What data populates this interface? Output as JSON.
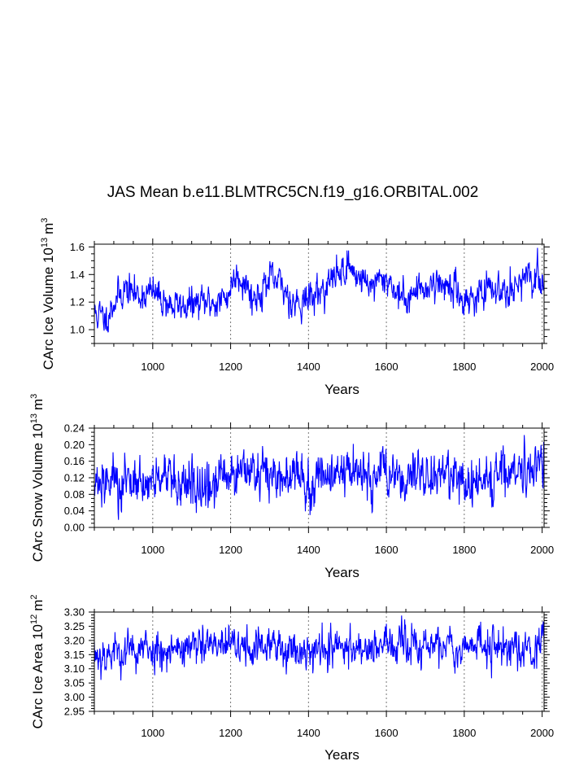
{
  "title": "JAS Mean b.e11.BLMTRC5CN.f19_g16.ORBITAL.002",
  "chart_data": [
    {
      "type": "line",
      "name": "ice-volume",
      "ylabel_main": "CArc Ice Volume 10",
      "ylabel_exp": "13",
      "ylabel_unit": "m",
      "ylabel_unit_exp": "3",
      "xlabel": "Years",
      "xlim": [
        850,
        2005
      ],
      "ylim": [
        0.9,
        1.62
      ],
      "xticks": [
        1000,
        1200,
        1400,
        1600,
        1800,
        2000
      ],
      "xtick_labels": [
        "1000",
        "1200",
        "1400",
        "1600",
        "1800",
        "2000"
      ],
      "yticks": [
        1.0,
        1.2,
        1.4,
        1.6
      ],
      "ytick_labels": [
        "1.0",
        "1.2",
        "1.4",
        "1.6"
      ],
      "minor_ystep": 0.05,
      "gridlines_x": [
        1000,
        1200,
        1400,
        1600,
        1800,
        2000
      ],
      "line_color": "#0000ff",
      "trend": {
        "years": [
          850,
          880,
          900,
          930,
          960,
          1000,
          1050,
          1100,
          1150,
          1170,
          1190,
          1200,
          1215,
          1240,
          1260,
          1300,
          1330,
          1360,
          1400,
          1440,
          1480,
          1500,
          1540,
          1570,
          1600,
          1640,
          1680,
          1720,
          1760,
          1800,
          1850,
          1900,
          1940,
          1980,
          2005
        ],
        "values": [
          1.12,
          1.08,
          1.2,
          1.3,
          1.25,
          1.27,
          1.17,
          1.18,
          1.2,
          1.2,
          1.24,
          1.3,
          1.42,
          1.33,
          1.22,
          1.36,
          1.32,
          1.2,
          1.22,
          1.3,
          1.42,
          1.46,
          1.36,
          1.32,
          1.38,
          1.22,
          1.28,
          1.34,
          1.32,
          1.22,
          1.26,
          1.3,
          1.34,
          1.36,
          1.38
        ]
      },
      "noise_std": 0.06,
      "seed": 11
    },
    {
      "type": "line",
      "name": "snow-volume",
      "ylabel_main": "CArc Snow Volume 10",
      "ylabel_exp": "13",
      "ylabel_unit": "m",
      "ylabel_unit_exp": "3",
      "xlabel": "Years",
      "xlim": [
        850,
        2005
      ],
      "ylim": [
        0.0,
        0.24
      ],
      "xticks": [
        1000,
        1200,
        1400,
        1600,
        1800,
        2000
      ],
      "xtick_labels": [
        "1000",
        "1200",
        "1400",
        "1600",
        "1800",
        "2000"
      ],
      "yticks": [
        0.0,
        0.04,
        0.08,
        0.12,
        0.16,
        0.2,
        0.24
      ],
      "ytick_labels": [
        "0.00",
        "0.04",
        "0.08",
        "0.12",
        "0.16",
        "0.20",
        "0.24"
      ],
      "minor_ystep": 0.01,
      "gridlines_x": [
        1000,
        1200,
        1400,
        1600,
        1800,
        2000
      ],
      "line_color": "#0000ff",
      "trend": {
        "years": [
          850,
          900,
          950,
          1000,
          1050,
          1100,
          1150,
          1200,
          1250,
          1300,
          1350,
          1400,
          1450,
          1500,
          1550,
          1600,
          1650,
          1700,
          1750,
          1800,
          1850,
          1900,
          1950,
          2005
        ],
        "values": [
          0.1,
          0.11,
          0.11,
          0.12,
          0.1,
          0.09,
          0.1,
          0.13,
          0.13,
          0.13,
          0.12,
          0.11,
          0.13,
          0.13,
          0.12,
          0.12,
          0.12,
          0.13,
          0.14,
          0.11,
          0.12,
          0.12,
          0.14,
          0.15
        ]
      },
      "noise_std": 0.03,
      "seed": 27
    },
    {
      "type": "line",
      "name": "ice-area",
      "ylabel_main": "CArc Ice Area 10",
      "ylabel_exp": "12",
      "ylabel_unit": "m",
      "ylabel_unit_exp": "2",
      "xlabel": "Years",
      "xlim": [
        850,
        2005
      ],
      "ylim": [
        2.95,
        3.3
      ],
      "xticks": [
        1000,
        1200,
        1400,
        1600,
        1800,
        2000
      ],
      "xtick_labels": [
        "1000",
        "1200",
        "1400",
        "1600",
        "1800",
        "2000"
      ],
      "yticks": [
        2.95,
        3.0,
        3.05,
        3.1,
        3.15,
        3.2,
        3.25,
        3.3
      ],
      "ytick_labels": [
        "2.95",
        "3.00",
        "3.05",
        "3.10",
        "3.15",
        "3.20",
        "3.25",
        "3.30"
      ],
      "minor_ystep": 0.01,
      "gridlines_x": [
        1000,
        1200,
        1400,
        1600,
        1800,
        2000
      ],
      "line_color": "#0000ff",
      "trend": {
        "years": [
          850,
          1000,
          1200,
          1400,
          1600,
          1800,
          2005
        ],
        "values": [
          3.15,
          3.17,
          3.18,
          3.17,
          3.18,
          3.18,
          3.18
        ]
      },
      "noise_std": 0.035,
      "seed": 53
    }
  ]
}
